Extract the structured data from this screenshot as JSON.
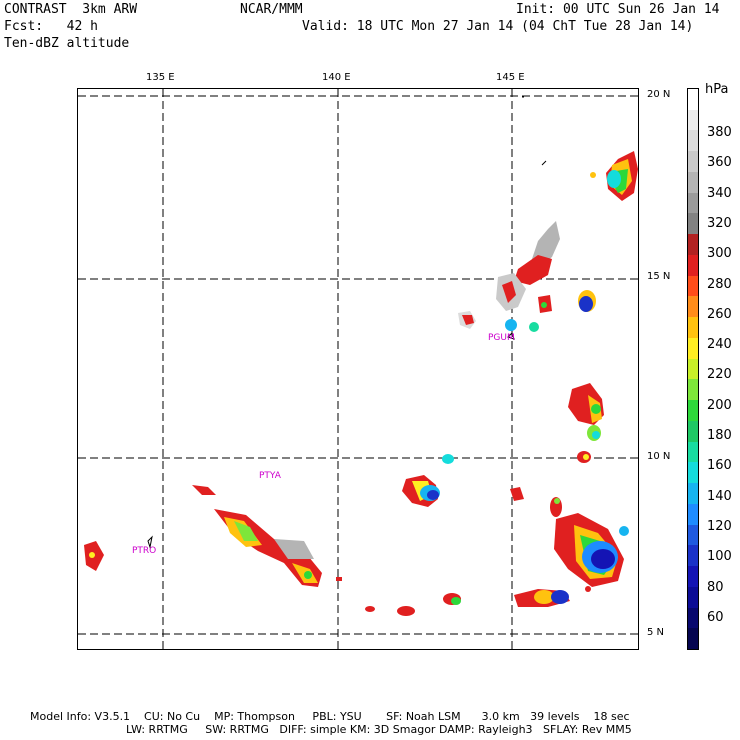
{
  "header": {
    "line1_left": "CONTRAST  3km ARW",
    "line1_mid": "NCAR/MMM",
    "line1_right": "Init: 00 UTC Sun 26 Jan 14",
    "line2_left": "Fcst:   42 h",
    "line2_right": "Valid: 18 UTC Mon 27 Jan 14 (04 ChT Tue 28 Jan 14)",
    "line3_left": "Ten-dBZ altitude"
  },
  "map": {
    "lon_ticks": [
      {
        "label": "135 E",
        "value": 135
      },
      {
        "label": "140 E",
        "value": 140
      },
      {
        "label": "145 E",
        "value": 145
      }
    ],
    "lat_ticks": [
      {
        "label": "20 N",
        "value": 20
      },
      {
        "label": "15 N",
        "value": 15
      },
      {
        "label": "10 N",
        "value": 10
      },
      {
        "label": "5 N",
        "value": 5
      }
    ],
    "stations": [
      {
        "label": "PGUM"
      },
      {
        "label": "PTYA"
      },
      {
        "label": "PTRO"
      }
    ],
    "grid_style": "dashed",
    "type": "filled contour map of ten-dBZ altitude"
  },
  "colorbar": {
    "unit": "hPa",
    "labels": [
      "380",
      "360",
      "340",
      "320",
      "300",
      "280",
      "260",
      "240",
      "220",
      "200",
      "180",
      "160",
      "140",
      "120",
      "100",
      "80",
      "60"
    ],
    "colors": [
      "#ffffff",
      "#ededed",
      "#dcdcdc",
      "#cacaca",
      "#b4b4b4",
      "#9b9b9b",
      "#828282",
      "#b22222",
      "#e02020",
      "#ff4d1a",
      "#ff8c1a",
      "#ffc20f",
      "#ffee22",
      "#c8f028",
      "#7ee63a",
      "#2dd83a",
      "#1ec864",
      "#18dca0",
      "#14dcdc",
      "#16b4f0",
      "#1e8cff",
      "#1f5ae0",
      "#1a32c8",
      "#1414b4",
      "#0c0c96",
      "#08086e",
      "#050550"
    ]
  },
  "footer": {
    "line1": "Model Info: V3.5.1    CU: No Cu    MP: Thompson     PBL: YSU       SF: Noah LSM      3.0 km   39 levels    18 sec",
    "line2": "LW: RRTMG     SW: RRTMG   DIFF: simple KM: 3D Smagor DAMP: Rayleigh3   SFLAY: Rev MM5"
  }
}
